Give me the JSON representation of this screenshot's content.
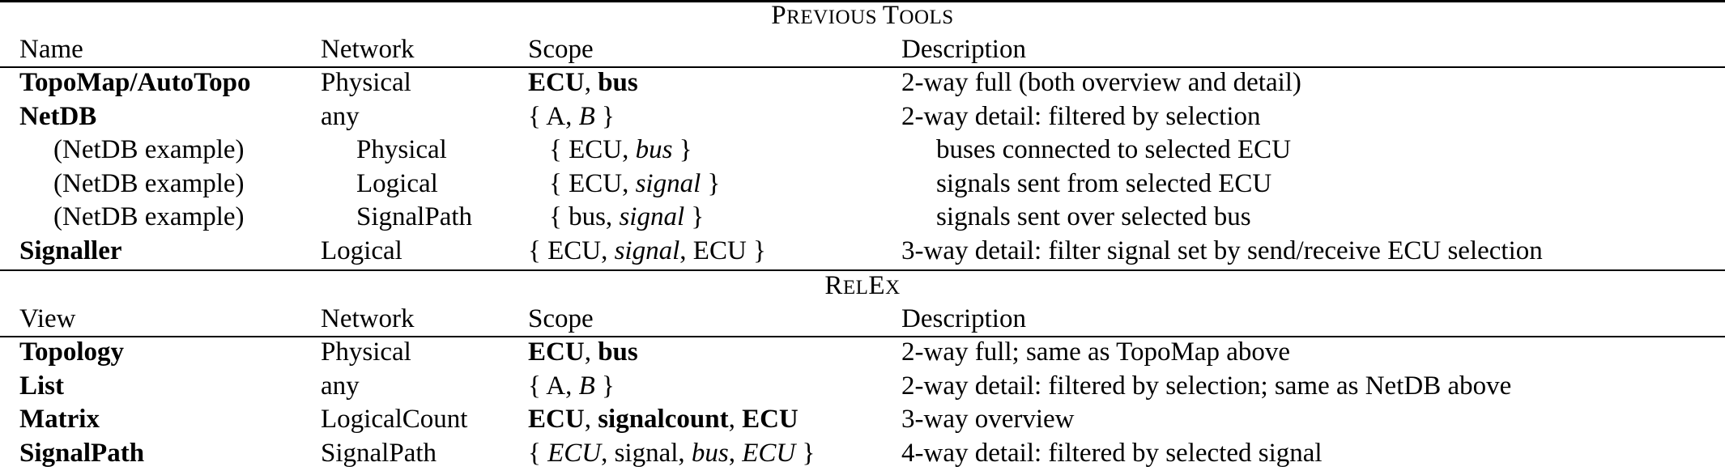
{
  "previous_tools": {
    "title_parts": [
      {
        "text": "P",
        "size": "big"
      },
      {
        "text": "REVIOUS ",
        "size": "small"
      },
      {
        "text": "T",
        "size": "big"
      },
      {
        "text": "OOLS",
        "size": "small"
      }
    ],
    "headers": [
      "Name",
      "Network",
      "Scope",
      "Description"
    ],
    "rows": [
      {
        "name": "TopoMap/AutoTopo",
        "name_bold": true,
        "indent": false,
        "network": "Physical",
        "scope": [
          {
            "t": "ECU",
            "s": "b"
          },
          {
            "t": ", ",
            "s": ""
          },
          {
            "t": "bus",
            "s": "b"
          }
        ],
        "description": "2-way full (both overview and detail)"
      },
      {
        "name": "NetDB",
        "name_bold": true,
        "indent": false,
        "network": "any",
        "scope": [
          {
            "t": "{ A, ",
            "s": ""
          },
          {
            "t": "B",
            "s": "i"
          },
          {
            "t": " }",
            "s": ""
          }
        ],
        "description": "2-way detail: filtered by selection"
      },
      {
        "name": "(NetDB example)",
        "name_bold": false,
        "indent": true,
        "network": "Physical",
        "scope": [
          {
            "t": "{ ECU, ",
            "s": ""
          },
          {
            "t": "bus",
            "s": "i"
          },
          {
            "t": " }",
            "s": ""
          }
        ],
        "description": "buses connected to selected ECU"
      },
      {
        "name": "(NetDB example)",
        "name_bold": false,
        "indent": true,
        "network": "Logical",
        "scope": [
          {
            "t": "{ ECU, ",
            "s": ""
          },
          {
            "t": "signal",
            "s": "i"
          },
          {
            "t": " }",
            "s": ""
          }
        ],
        "description": "signals sent from selected ECU"
      },
      {
        "name": "(NetDB example)",
        "name_bold": false,
        "indent": true,
        "network": "SignalPath",
        "scope": [
          {
            "t": "{ bus, ",
            "s": ""
          },
          {
            "t": "signal",
            "s": "i"
          },
          {
            "t": " }",
            "s": ""
          }
        ],
        "description": "signals sent over selected bus"
      },
      {
        "name": "Signaller",
        "name_bold": true,
        "indent": false,
        "network": "Logical",
        "scope": [
          {
            "t": "{ ECU, ",
            "s": ""
          },
          {
            "t": "signal",
            "s": "i"
          },
          {
            "t": ", ECU }",
            "s": ""
          }
        ],
        "description": "3-way detail: filter signal set by send/receive ECU selection"
      }
    ]
  },
  "relex": {
    "title_parts": [
      {
        "text": "R",
        "size": "big"
      },
      {
        "text": "EL",
        "size": "small"
      },
      {
        "text": "E",
        "size": "big"
      },
      {
        "text": "X",
        "size": "small"
      }
    ],
    "headers": [
      "View",
      "Network",
      "Scope",
      "Description"
    ],
    "rows": [
      {
        "name": "Topology",
        "name_bold": true,
        "indent": false,
        "network": "Physical",
        "scope": [
          {
            "t": "ECU",
            "s": "b"
          },
          {
            "t": ", ",
            "s": ""
          },
          {
            "t": "bus",
            "s": "b"
          }
        ],
        "description": "2-way full; same as TopoMap above"
      },
      {
        "name": "List",
        "name_bold": true,
        "indent": false,
        "network": "any",
        "scope": [
          {
            "t": "{ A, ",
            "s": ""
          },
          {
            "t": "B",
            "s": "i"
          },
          {
            "t": " }",
            "s": ""
          }
        ],
        "description": "2-way detail: filtered by selection; same as NetDB above"
      },
      {
        "name": "Matrix",
        "name_bold": true,
        "indent": false,
        "network": "LogicalCount",
        "scope": [
          {
            "t": "ECU",
            "s": "b"
          },
          {
            "t": ", ",
            "s": ""
          },
          {
            "t": "signalcount",
            "s": "b"
          },
          {
            "t": ", ",
            "s": ""
          },
          {
            "t": "ECU",
            "s": "b"
          }
        ],
        "description": "3-way overview"
      },
      {
        "name": "SignalPath",
        "name_bold": true,
        "indent": false,
        "network": "SignalPath",
        "scope": [
          {
            "t": "{ ",
            "s": ""
          },
          {
            "t": "ECU",
            "s": "i"
          },
          {
            "t": ", signal, ",
            "s": ""
          },
          {
            "t": "bus",
            "s": "i"
          },
          {
            "t": ", ",
            "s": ""
          },
          {
            "t": "ECU",
            "s": "i"
          },
          {
            "t": " }",
            "s": ""
          }
        ],
        "description": "4-way detail: filtered by selected signal"
      }
    ]
  }
}
